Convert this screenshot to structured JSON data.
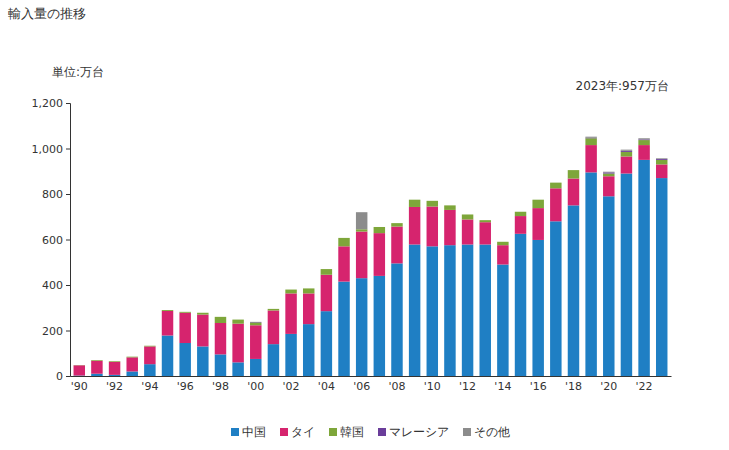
{
  "chart_data": {
    "type": "bar",
    "title": "輸入量の推移",
    "ylabel": "単位:万台",
    "annotation": "2023年:957万台",
    "stacked": true,
    "grid": false,
    "legend": "bottom",
    "categories": [
      "'90",
      null,
      "'92",
      null,
      "'94",
      null,
      "'96",
      null,
      "'98",
      null,
      "'00",
      null,
      "'02",
      null,
      "'04",
      null,
      "'06",
      null,
      "'08",
      null,
      "'10",
      null,
      "'12",
      null,
      "'14",
      null,
      "'16",
      null,
      "'18",
      null,
      "'20",
      null,
      "'22",
      null
    ],
    "ylim": [
      0,
      1200
    ],
    "yticks": [
      0,
      200,
      400,
      600,
      800,
      {
        "value": 1000,
        "label": "1,000"
      },
      {
        "value": 1200,
        "label": "1,200"
      }
    ],
    "series": [
      {
        "name": "中国",
        "color": "#1f7fc4",
        "values": [
          2,
          10,
          5,
          20,
          52,
          178,
          145,
          130,
          95,
          60,
          75,
          140,
          185,
          228,
          285,
          415,
          430,
          440,
          495,
          578,
          570,
          575,
          578,
          578,
          490,
          625,
          598,
          680,
          750,
          895,
          790,
          890,
          950,
          870
        ]
      },
      {
        "name": "タイ",
        "color": "#d6246e",
        "values": [
          45,
          57,
          57,
          62,
          78,
          108,
          133,
          140,
          138,
          170,
          148,
          148,
          178,
          135,
          160,
          155,
          205,
          188,
          162,
          165,
          175,
          155,
          110,
          98,
          85,
          78,
          140,
          145,
          118,
          120,
          88,
          75,
          65,
          60
        ]
      },
      {
        "name": "韓国",
        "color": "#7ea63a",
        "values": [
          1,
          3,
          3,
          3,
          3,
          4,
          4,
          8,
          27,
          18,
          10,
          7,
          17,
          22,
          25,
          37,
          10,
          27,
          15,
          32,
          25,
          20,
          22,
          9,
          15,
          19,
          37,
          25,
          37,
          30,
          12,
          20,
          22,
          20
        ]
      },
      {
        "name": "マレーシア",
        "color": "#6a3d9a",
        "values": [
          0,
          0,
          0,
          0,
          0,
          0,
          0,
          0,
          0,
          0,
          0,
          0,
          0,
          0,
          0,
          0,
          0,
          0,
          0,
          0,
          0,
          0,
          0,
          0,
          0,
          0,
          0,
          0,
          0,
          2,
          5,
          5,
          3,
          4
        ]
      },
      {
        "name": "その他",
        "color": "#8c8c8c",
        "values": [
          0,
          0,
          0,
          0,
          0,
          0,
          0,
          0,
          0,
          0,
          5,
          0,
          0,
          0,
          0,
          0,
          75,
          0,
          0,
          0,
          0,
          0,
          0,
          0,
          0,
          0,
          0,
          0,
          0,
          5,
          3,
          5,
          5,
          3
        ]
      }
    ]
  }
}
